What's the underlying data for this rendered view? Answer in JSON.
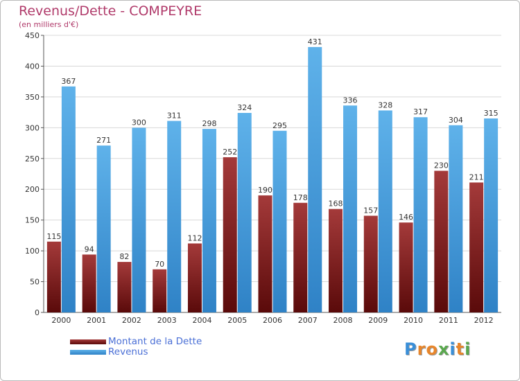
{
  "title": "Revenus/Dette - COMPEYRE",
  "subtitle": "(en milliers d'€)",
  "logo": {
    "text": "Proxiti",
    "letter_colors": [
      "#3a8fd8",
      "#e8862b",
      "#e8862b",
      "#5aa84e",
      "#3a8fd8",
      "#e8862b",
      "#5aa84e"
    ]
  },
  "legend": {
    "items": [
      {
        "label": "Montant de la Dette",
        "color": "#7a1a1a"
      },
      {
        "label": "Revenus",
        "color": "#4a9fe0"
      }
    ]
  },
  "chart_data": {
    "type": "bar",
    "title": "Revenus/Dette - COMPEYRE",
    "ylabel": "(en milliers d'€)",
    "xlabel": "",
    "categories": [
      "2000",
      "2001",
      "2002",
      "2003",
      "2004",
      "2005",
      "2006",
      "2007",
      "2008",
      "2009",
      "2010",
      "2011",
      "2012"
    ],
    "series": [
      {
        "name": "Montant de la Dette",
        "color": "#7a1a1a",
        "values": [
          115,
          94,
          82,
          70,
          112,
          252,
          190,
          178,
          168,
          157,
          146,
          230,
          211
        ]
      },
      {
        "name": "Revenus",
        "color": "#4a9fe0",
        "values": [
          367,
          271,
          300,
          311,
          298,
          324,
          295,
          431,
          336,
          328,
          317,
          304,
          315
        ]
      }
    ],
    "ylim": [
      0,
      450
    ],
    "yticks": [
      0,
      50,
      100,
      150,
      200,
      250,
      300,
      350,
      400,
      450
    ],
    "grid": true,
    "legend_position": "bottom-left"
  }
}
